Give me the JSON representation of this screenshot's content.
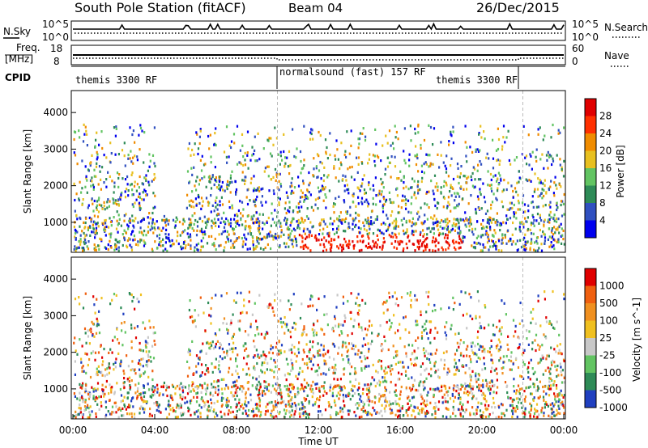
{
  "header": {
    "station": "South Pole Station (fitACF)",
    "beam": "Beam 04",
    "date": "26/Dec/2015"
  },
  "side_labels": {
    "nsky": "N.Sky",
    "freq_line1": "Freq.",
    "freq_line2": "[MHz]",
    "cpid": "CPID",
    "nsearch": "N.Search",
    "nave": "Nave"
  },
  "noise_panel": {
    "left_ticks": [
      "10^5",
      "10^0"
    ],
    "right_ticks": [
      "10^5",
      "10^0"
    ]
  },
  "freq_panel": {
    "left_ticks": [
      "18",
      "8"
    ],
    "right_ticks": [
      "60",
      "0"
    ]
  },
  "cpid_segments": [
    {
      "label": "themis 3300 RF",
      "start_hour": 0
    },
    {
      "label": "normalsound (fast) 157 RF",
      "start_hour": 10
    },
    {
      "label": "themis 3300 RF",
      "start_hour": 22
    }
  ],
  "chart_data": [
    {
      "type": "heatmap",
      "parameter": "Power",
      "ylabel": "Slant Range [km]",
      "ylim": [
        180,
        4600
      ],
      "y_ticks": [
        "1000",
        "2000",
        "3000",
        "4000"
      ],
      "colorbar_label": "Power [dB]",
      "colorbar_ticks": [
        "4",
        "8",
        "12",
        "16",
        "20",
        "24",
        "28"
      ],
      "colorbar_colors": [
        "#0000ee",
        "#3050c0",
        "#2e8b57",
        "#62c462",
        "#e8c020",
        "#f08c00",
        "#ff3000",
        "#e00000"
      ]
    },
    {
      "type": "heatmap",
      "parameter": "Velocity",
      "ylabel": "Slant Range [km]",
      "ylim": [
        180,
        4600
      ],
      "y_ticks": [
        "1000",
        "2000",
        "3000",
        "4000"
      ],
      "colorbar_label": "Velocity [m s^-1]",
      "colorbar_ticks": [
        "1000",
        "500",
        "100",
        "25",
        "-25",
        "-100",
        "-500",
        "-1000"
      ],
      "colorbar_colors": [
        "#2040c0",
        "#2e8b57",
        "#62c462",
        "#c8c8c8",
        "#f0c020",
        "#f09020",
        "#f06010",
        "#e00000"
      ]
    }
  ],
  "x_axis": {
    "label": "Time UT",
    "ticks": [
      "00:00",
      "04:00",
      "08:00",
      "12:00",
      "16:00",
      "20:00",
      "00:00"
    ],
    "range_hours": [
      0,
      24
    ]
  }
}
